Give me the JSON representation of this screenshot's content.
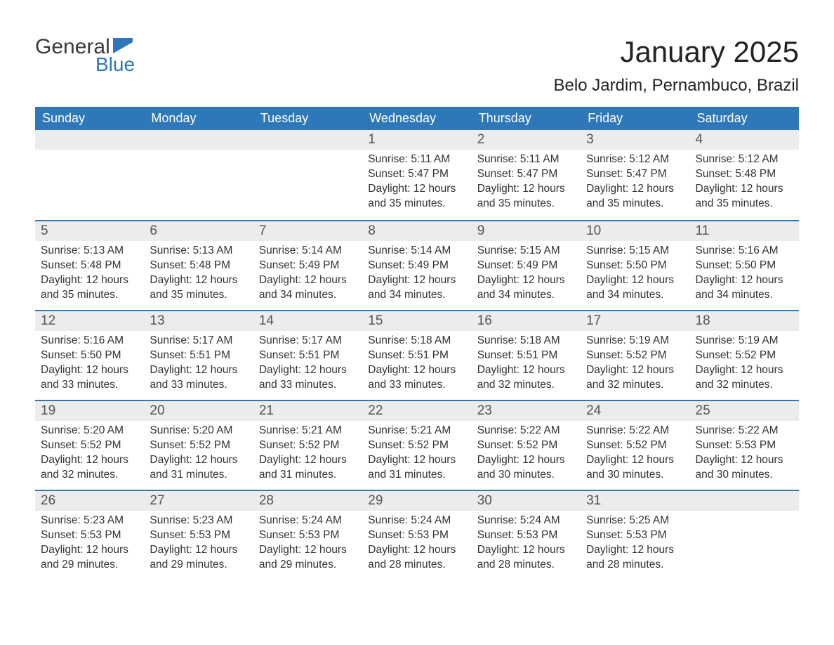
{
  "brand": {
    "general": "General",
    "blue": "Blue"
  },
  "title": "January 2025",
  "location": "Belo Jardim, Pernambuco, Brazil",
  "colors": {
    "header_bg": "#2e77b8",
    "header_text": "#ffffff",
    "daynum_bg": "#ececec",
    "week_border": "#2e77b8",
    "body_text": "#333333",
    "page_bg": "#ffffff"
  },
  "typography": {
    "title_fontsize": 42,
    "location_fontsize": 24,
    "dayheader_fontsize": 18,
    "daynum_fontsize": 19,
    "cell_fontsize": 15.5
  },
  "layout": {
    "columns": 7,
    "rows": 5
  },
  "day_headers": [
    "Sunday",
    "Monday",
    "Tuesday",
    "Wednesday",
    "Thursday",
    "Friday",
    "Saturday"
  ],
  "weeks": [
    [
      null,
      null,
      null,
      {
        "n": "1",
        "sunrise": "Sunrise: 5:11 AM",
        "sunset": "Sunset: 5:47 PM",
        "daylight": "Daylight: 12 hours and 35 minutes."
      },
      {
        "n": "2",
        "sunrise": "Sunrise: 5:11 AM",
        "sunset": "Sunset: 5:47 PM",
        "daylight": "Daylight: 12 hours and 35 minutes."
      },
      {
        "n": "3",
        "sunrise": "Sunrise: 5:12 AM",
        "sunset": "Sunset: 5:47 PM",
        "daylight": "Daylight: 12 hours and 35 minutes."
      },
      {
        "n": "4",
        "sunrise": "Sunrise: 5:12 AM",
        "sunset": "Sunset: 5:48 PM",
        "daylight": "Daylight: 12 hours and 35 minutes."
      }
    ],
    [
      {
        "n": "5",
        "sunrise": "Sunrise: 5:13 AM",
        "sunset": "Sunset: 5:48 PM",
        "daylight": "Daylight: 12 hours and 35 minutes."
      },
      {
        "n": "6",
        "sunrise": "Sunrise: 5:13 AM",
        "sunset": "Sunset: 5:48 PM",
        "daylight": "Daylight: 12 hours and 35 minutes."
      },
      {
        "n": "7",
        "sunrise": "Sunrise: 5:14 AM",
        "sunset": "Sunset: 5:49 PM",
        "daylight": "Daylight: 12 hours and 34 minutes."
      },
      {
        "n": "8",
        "sunrise": "Sunrise: 5:14 AM",
        "sunset": "Sunset: 5:49 PM",
        "daylight": "Daylight: 12 hours and 34 minutes."
      },
      {
        "n": "9",
        "sunrise": "Sunrise: 5:15 AM",
        "sunset": "Sunset: 5:49 PM",
        "daylight": "Daylight: 12 hours and 34 minutes."
      },
      {
        "n": "10",
        "sunrise": "Sunrise: 5:15 AM",
        "sunset": "Sunset: 5:50 PM",
        "daylight": "Daylight: 12 hours and 34 minutes."
      },
      {
        "n": "11",
        "sunrise": "Sunrise: 5:16 AM",
        "sunset": "Sunset: 5:50 PM",
        "daylight": "Daylight: 12 hours and 34 minutes."
      }
    ],
    [
      {
        "n": "12",
        "sunrise": "Sunrise: 5:16 AM",
        "sunset": "Sunset: 5:50 PM",
        "daylight": "Daylight: 12 hours and 33 minutes."
      },
      {
        "n": "13",
        "sunrise": "Sunrise: 5:17 AM",
        "sunset": "Sunset: 5:51 PM",
        "daylight": "Daylight: 12 hours and 33 minutes."
      },
      {
        "n": "14",
        "sunrise": "Sunrise: 5:17 AM",
        "sunset": "Sunset: 5:51 PM",
        "daylight": "Daylight: 12 hours and 33 minutes."
      },
      {
        "n": "15",
        "sunrise": "Sunrise: 5:18 AM",
        "sunset": "Sunset: 5:51 PM",
        "daylight": "Daylight: 12 hours and 33 minutes."
      },
      {
        "n": "16",
        "sunrise": "Sunrise: 5:18 AM",
        "sunset": "Sunset: 5:51 PM",
        "daylight": "Daylight: 12 hours and 32 minutes."
      },
      {
        "n": "17",
        "sunrise": "Sunrise: 5:19 AM",
        "sunset": "Sunset: 5:52 PM",
        "daylight": "Daylight: 12 hours and 32 minutes."
      },
      {
        "n": "18",
        "sunrise": "Sunrise: 5:19 AM",
        "sunset": "Sunset: 5:52 PM",
        "daylight": "Daylight: 12 hours and 32 minutes."
      }
    ],
    [
      {
        "n": "19",
        "sunrise": "Sunrise: 5:20 AM",
        "sunset": "Sunset: 5:52 PM",
        "daylight": "Daylight: 12 hours and 32 minutes."
      },
      {
        "n": "20",
        "sunrise": "Sunrise: 5:20 AM",
        "sunset": "Sunset: 5:52 PM",
        "daylight": "Daylight: 12 hours and 31 minutes."
      },
      {
        "n": "21",
        "sunrise": "Sunrise: 5:21 AM",
        "sunset": "Sunset: 5:52 PM",
        "daylight": "Daylight: 12 hours and 31 minutes."
      },
      {
        "n": "22",
        "sunrise": "Sunrise: 5:21 AM",
        "sunset": "Sunset: 5:52 PM",
        "daylight": "Daylight: 12 hours and 31 minutes."
      },
      {
        "n": "23",
        "sunrise": "Sunrise: 5:22 AM",
        "sunset": "Sunset: 5:52 PM",
        "daylight": "Daylight: 12 hours and 30 minutes."
      },
      {
        "n": "24",
        "sunrise": "Sunrise: 5:22 AM",
        "sunset": "Sunset: 5:52 PM",
        "daylight": "Daylight: 12 hours and 30 minutes."
      },
      {
        "n": "25",
        "sunrise": "Sunrise: 5:22 AM",
        "sunset": "Sunset: 5:53 PM",
        "daylight": "Daylight: 12 hours and 30 minutes."
      }
    ],
    [
      {
        "n": "26",
        "sunrise": "Sunrise: 5:23 AM",
        "sunset": "Sunset: 5:53 PM",
        "daylight": "Daylight: 12 hours and 29 minutes."
      },
      {
        "n": "27",
        "sunrise": "Sunrise: 5:23 AM",
        "sunset": "Sunset: 5:53 PM",
        "daylight": "Daylight: 12 hours and 29 minutes."
      },
      {
        "n": "28",
        "sunrise": "Sunrise: 5:24 AM",
        "sunset": "Sunset: 5:53 PM",
        "daylight": "Daylight: 12 hours and 29 minutes."
      },
      {
        "n": "29",
        "sunrise": "Sunrise: 5:24 AM",
        "sunset": "Sunset: 5:53 PM",
        "daylight": "Daylight: 12 hours and 28 minutes."
      },
      {
        "n": "30",
        "sunrise": "Sunrise: 5:24 AM",
        "sunset": "Sunset: 5:53 PM",
        "daylight": "Daylight: 12 hours and 28 minutes."
      },
      {
        "n": "31",
        "sunrise": "Sunrise: 5:25 AM",
        "sunset": "Sunset: 5:53 PM",
        "daylight": "Daylight: 12 hours and 28 minutes."
      },
      null
    ]
  ]
}
